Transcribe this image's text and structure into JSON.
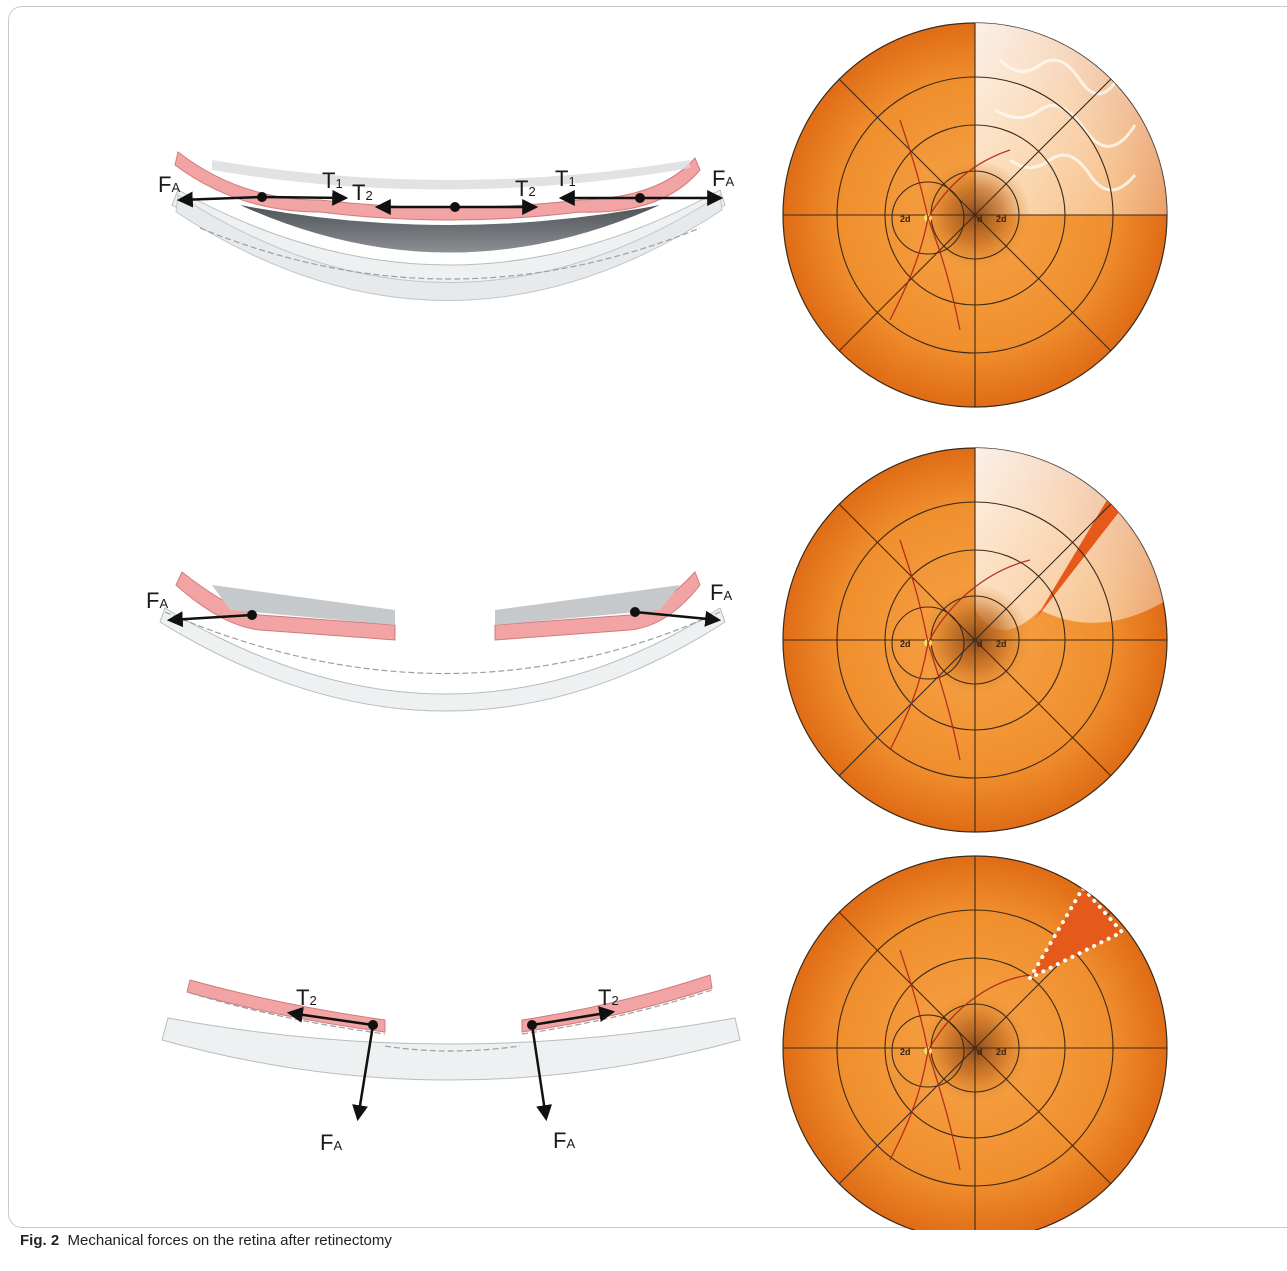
{
  "caption": {
    "label": "Fig. 2",
    "text": "Mechanical forces on the retina after retinectomy"
  },
  "labels": {
    "force_main": "F",
    "force_sub": "A",
    "tension_main": "T",
    "tension1_sub": "1",
    "tension2_sub": "2"
  },
  "fundus": {
    "disc_label": "d",
    "two_disc_label": "2d"
  },
  "colors": {
    "retina": "#f2a3a3",
    "sclera": "#e8ecee",
    "subretinal_fluid": "#6b6f73",
    "fundus_light": "#f39a3a",
    "fundus_dark": "#e2701a",
    "vessel": "#b0241d",
    "grid": "#3b2a1a"
  },
  "panels": [
    {
      "id": "panel-1",
      "forces": [
        "FA",
        "T1",
        "T2",
        "T2",
        "T1",
        "FA"
      ]
    },
    {
      "id": "panel-2",
      "forces": [
        "FA",
        "FA"
      ]
    },
    {
      "id": "panel-3",
      "forces": [
        "T2",
        "FA",
        "T2",
        "FA"
      ]
    }
  ]
}
